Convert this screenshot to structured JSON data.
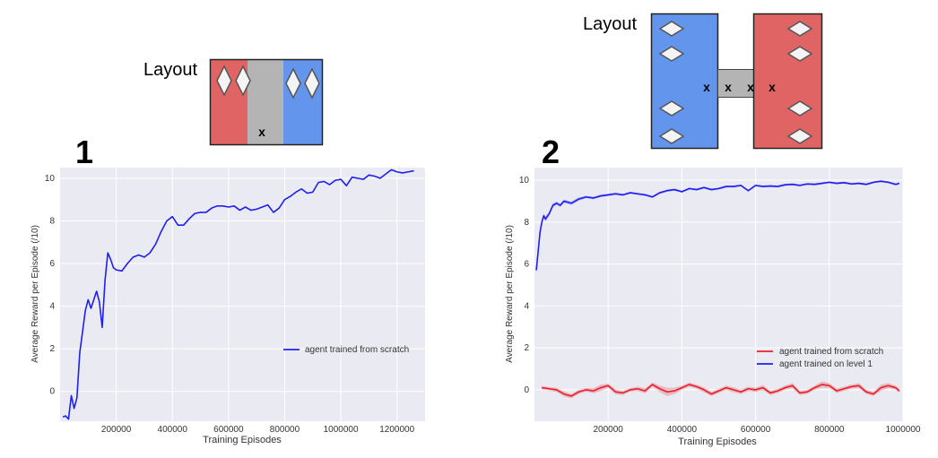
{
  "colors": {
    "plot_bg": "#eaeaf2",
    "grid": "#ffffff",
    "series_red": "#e8202a",
    "series_blue": "#1f1ff0",
    "layout_red": "#e06464",
    "layout_blue": "#6495ed",
    "layout_grey": "#b4b4b4"
  },
  "layouts": [
    {
      "label": "Layout",
      "marks": [
        "x"
      ]
    },
    {
      "label": "Layout",
      "marks": [
        "x",
        "x",
        "x",
        "x"
      ]
    }
  ],
  "chart_data": [
    {
      "panel_label": "1",
      "type": "line",
      "xlabel": "Training Episodes",
      "ylabel": "Average Reward per Episode (/10)",
      "xlim": [
        0,
        1300000
      ],
      "ylim": [
        -1.4,
        10.5
      ],
      "xticks": [
        200000,
        400000,
        600000,
        800000,
        1000000,
        1200000
      ],
      "xtick_labels": [
        "200000",
        "400000",
        "600000",
        "800000",
        "1000000",
        "1200000"
      ],
      "yticks": [
        0,
        2,
        4,
        6,
        8,
        10
      ],
      "ytick_labels": [
        "0",
        "2",
        "4",
        "6",
        "8",
        "10"
      ],
      "grid": true,
      "legend_position": "right",
      "series": [
        {
          "name": "agent trained from scratch",
          "color": "#1f1ff0",
          "x": [
            10000,
            20000,
            30000,
            40000,
            50000,
            60000,
            70000,
            80000,
            90000,
            100000,
            110000,
            120000,
            130000,
            140000,
            150000,
            160000,
            170000,
            180000,
            190000,
            200000,
            220000,
            240000,
            260000,
            280000,
            300000,
            320000,
            340000,
            360000,
            380000,
            400000,
            420000,
            440000,
            460000,
            480000,
            500000,
            520000,
            540000,
            560000,
            580000,
            600000,
            620000,
            640000,
            660000,
            680000,
            700000,
            720000,
            740000,
            760000,
            780000,
            800000,
            820000,
            840000,
            860000,
            880000,
            900000,
            920000,
            940000,
            960000,
            980000,
            1000000,
            1020000,
            1040000,
            1060000,
            1080000,
            1100000,
            1120000,
            1140000,
            1160000,
            1180000,
            1200000,
            1220000,
            1240000,
            1260000
          ],
          "y": [
            -1.2,
            -1.15,
            -1.3,
            -0.2,
            -0.8,
            -0.3,
            1.8,
            2.8,
            3.8,
            4.3,
            3.9,
            4.3,
            4.7,
            4.2,
            3.0,
            5.2,
            6.5,
            6.2,
            5.8,
            5.7,
            5.65,
            6.0,
            6.3,
            6.4,
            6.3,
            6.5,
            6.9,
            7.5,
            8.0,
            8.2,
            7.8,
            7.8,
            8.1,
            8.35,
            8.4,
            8.4,
            8.6,
            8.7,
            8.7,
            8.65,
            8.7,
            8.5,
            8.65,
            8.5,
            8.55,
            8.65,
            8.75,
            8.4,
            8.6,
            9.0,
            9.15,
            9.35,
            9.5,
            9.3,
            9.35,
            9.8,
            9.85,
            9.7,
            9.9,
            9.95,
            9.65,
            10.05,
            10.0,
            9.95,
            10.15,
            10.1,
            10.0,
            10.2,
            10.4,
            10.3,
            10.25,
            10.3,
            10.35
          ]
        }
      ]
    },
    {
      "panel_label": "2",
      "type": "line",
      "xlabel": "Training Episodes",
      "ylabel": "Average Reward per Episode (/10)",
      "xlim": [
        0,
        1000000
      ],
      "ylim": [
        -1.5,
        10.6
      ],
      "xticks": [
        200000,
        400000,
        600000,
        800000,
        1000000
      ],
      "xtick_labels": [
        "200000",
        "400000",
        "600000",
        "800000",
        "1000000"
      ],
      "yticks": [
        0,
        2,
        4,
        6,
        8,
        10
      ],
      "ytick_labels": [
        "0",
        "2",
        "4",
        "6",
        "8",
        "10"
      ],
      "grid": true,
      "legend_position": "lower right",
      "series": [
        {
          "name": "agent trained from scratch",
          "color": "#e8202a",
          "x": [
            20000,
            40000,
            60000,
            80000,
            100000,
            120000,
            140000,
            160000,
            180000,
            200000,
            220000,
            240000,
            260000,
            280000,
            300000,
            320000,
            340000,
            360000,
            380000,
            400000,
            420000,
            440000,
            460000,
            480000,
            500000,
            520000,
            540000,
            560000,
            580000,
            600000,
            620000,
            640000,
            660000,
            680000,
            700000,
            720000,
            740000,
            760000,
            780000,
            800000,
            820000,
            840000,
            860000,
            880000,
            900000,
            920000,
            940000,
            960000,
            980000,
            990000
          ],
          "y": [
            0.1,
            0.05,
            0.0,
            -0.2,
            -0.3,
            -0.1,
            0.0,
            -0.05,
            0.1,
            0.2,
            -0.1,
            -0.15,
            0.0,
            0.05,
            -0.05,
            0.25,
            0.05,
            -0.1,
            -0.05,
            0.1,
            0.25,
            0.15,
            0.0,
            -0.2,
            -0.05,
            0.1,
            0.0,
            -0.1,
            0.05,
            0.0,
            0.1,
            -0.15,
            -0.05,
            0.1,
            0.2,
            -0.15,
            -0.1,
            0.1,
            0.25,
            0.2,
            -0.05,
            0.05,
            0.15,
            0.2,
            -0.1,
            -0.2,
            0.1,
            0.2,
            0.1,
            -0.05
          ],
          "band": [
            0.08,
            0.08,
            0.1,
            0.12,
            0.1,
            0.1,
            0.08,
            0.12,
            0.15,
            0.1,
            0.12,
            0.1,
            0.08,
            0.1,
            0.12,
            0.1,
            0.15,
            0.2,
            0.15,
            0.1,
            0.1,
            0.1,
            0.12,
            0.1,
            0.1,
            0.1,
            0.12,
            0.1,
            0.1,
            0.1,
            0.12,
            0.1,
            0.1,
            0.1,
            0.12,
            0.1,
            0.1,
            0.1,
            0.15,
            0.12,
            0.1,
            0.1,
            0.1,
            0.12,
            0.1,
            0.1,
            0.15,
            0.12,
            0.1,
            0.1
          ]
        },
        {
          "name": "agent trained on level 1",
          "color": "#1f1ff0",
          "x": [
            5000,
            10000,
            15000,
            20000,
            25000,
            30000,
            40000,
            50000,
            60000,
            70000,
            80000,
            100000,
            120000,
            140000,
            160000,
            180000,
            200000,
            220000,
            240000,
            260000,
            280000,
            300000,
            320000,
            340000,
            360000,
            380000,
            400000,
            420000,
            440000,
            460000,
            480000,
            500000,
            520000,
            540000,
            560000,
            580000,
            600000,
            620000,
            640000,
            660000,
            680000,
            700000,
            720000,
            740000,
            760000,
            780000,
            800000,
            820000,
            840000,
            860000,
            880000,
            900000,
            920000,
            940000,
            960000,
            980000,
            990000
          ],
          "y": [
            5.7,
            6.6,
            7.5,
            8.0,
            8.3,
            8.15,
            8.4,
            8.8,
            8.9,
            8.8,
            9.0,
            8.9,
            9.1,
            9.2,
            9.15,
            9.25,
            9.3,
            9.35,
            9.3,
            9.4,
            9.35,
            9.3,
            9.2,
            9.4,
            9.5,
            9.55,
            9.45,
            9.6,
            9.55,
            9.65,
            9.55,
            9.6,
            9.7,
            9.7,
            9.75,
            9.5,
            9.75,
            9.7,
            9.72,
            9.7,
            9.78,
            9.8,
            9.75,
            9.82,
            9.8,
            9.85,
            9.9,
            9.85,
            9.88,
            9.82,
            9.85,
            9.8,
            9.9,
            9.95,
            9.9,
            9.8,
            9.85
          ],
          "band": [
            0.15,
            0.15,
            0.15,
            0.12,
            0.12,
            0.12,
            0.1,
            0.1,
            0.08,
            0.08,
            0.08,
            0.08,
            0.08,
            0.06,
            0.06,
            0.06,
            0.06,
            0.06,
            0.05,
            0.05,
            0.05,
            0.05,
            0.05,
            0.05,
            0.05,
            0.05,
            0.05,
            0.05,
            0.05,
            0.05,
            0.05,
            0.05,
            0.05,
            0.05,
            0.05,
            0.05,
            0.05,
            0.05,
            0.05,
            0.05,
            0.05,
            0.05,
            0.05,
            0.05,
            0.05,
            0.05,
            0.05,
            0.05,
            0.05,
            0.05,
            0.05,
            0.05,
            0.05,
            0.05,
            0.05,
            0.05,
            0.05
          ]
        }
      ]
    }
  ]
}
